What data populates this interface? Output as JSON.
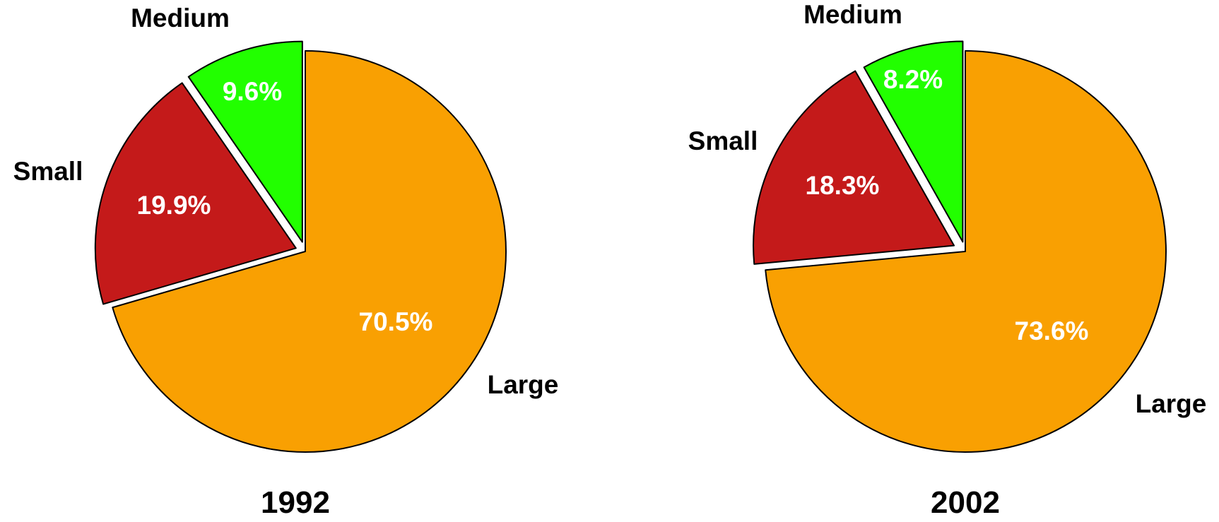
{
  "chart_data": [
    {
      "type": "pie",
      "title": "1992",
      "slices": [
        {
          "label": "Large",
          "value": 70.5,
          "value_label": "70.5%",
          "color": "#F9A002"
        },
        {
          "label": "Small",
          "value": 19.9,
          "value_label": "19.9%",
          "color": "#C41A1A"
        },
        {
          "label": "Medium",
          "value": 9.6,
          "value_label": "9.6%",
          "color": "#22FF00"
        }
      ]
    },
    {
      "type": "pie",
      "title": "2002",
      "slices": [
        {
          "label": "Large",
          "value": 73.6,
          "value_label": "73.6%",
          "color": "#F9A002"
        },
        {
          "label": "Small",
          "value": 18.3,
          "value_label": "18.3%",
          "color": "#C41A1A"
        },
        {
          "label": "Medium",
          "value": 8.2,
          "value_label": "8.2%",
          "color": "#22FF00"
        }
      ]
    }
  ]
}
